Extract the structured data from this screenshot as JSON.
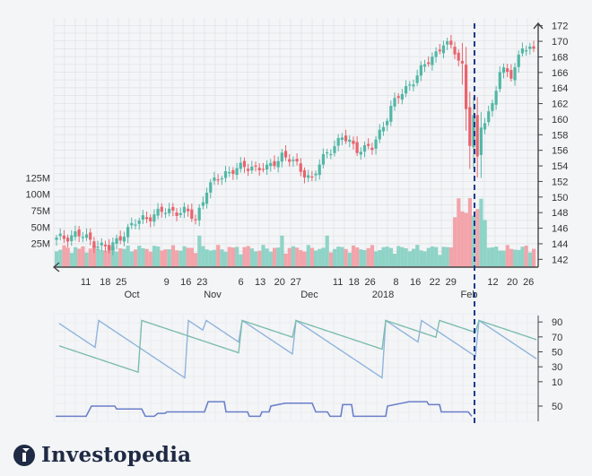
{
  "chart_data": [
    {
      "type": "candlestick",
      "title": "",
      "x_month_labels": [
        "Oct",
        "Nov",
        "Dec",
        "2018",
        "Feb"
      ],
      "x_day_labels": [
        "11",
        "18",
        "25",
        "9",
        "16",
        "23",
        "6",
        "13",
        "20",
        "27",
        "11",
        "18",
        "26",
        "8",
        "16",
        "22",
        "29",
        "12",
        "20",
        "26"
      ],
      "y_price_ticks": [
        "142",
        "144",
        "146",
        "148",
        "150",
        "152",
        "154",
        "156",
        "158",
        "160",
        "162",
        "164",
        "166",
        "168",
        "170",
        "172"
      ],
      "volume_ticks": [
        "25M",
        "50M",
        "75M",
        "100M",
        "125M"
      ],
      "price_ylim": [
        141,
        173
      ],
      "price_waypoints": [
        [
          0,
          144.5
        ],
        [
          5,
          145.3
        ],
        [
          10,
          144.2
        ],
        [
          14,
          143.3
        ],
        [
          18,
          145.5
        ],
        [
          23,
          147.3
        ],
        [
          30,
          148.3
        ],
        [
          34,
          148.1
        ],
        [
          37,
          147.2
        ],
        [
          40,
          151.0
        ],
        [
          45,
          153.2
        ],
        [
          52,
          154.0
        ],
        [
          56,
          153.5
        ],
        [
          60,
          155.5
        ],
        [
          64,
          154.0
        ],
        [
          68,
          152.3
        ],
        [
          72,
          155.8
        ],
        [
          76,
          157.6
        ],
        [
          80,
          156.3
        ],
        [
          84,
          156.2
        ],
        [
          89,
          161.5
        ],
        [
          93,
          164.0
        ],
        [
          98,
          166.8
        ],
        [
          103,
          169.8
        ],
        [
          106,
          168.6
        ],
        [
          108,
          167.0
        ],
        [
          109,
          161.5
        ],
        [
          110,
          157.0
        ],
        [
          111,
          160.2
        ],
        [
          112,
          154.5
        ],
        [
          113,
          159.0
        ],
        [
          116,
          162.0
        ],
        [
          118,
          166.0
        ],
        [
          121,
          165.8
        ],
        [
          124,
          169.2
        ],
        [
          127,
          168.6
        ]
      ],
      "volume_series_scale_millions": [
        0,
        150
      ],
      "event_marker": {
        "label": "Feb",
        "style": "dashed"
      },
      "colors": {
        "up": "#52b7a6",
        "down": "#e8646d",
        "up_volume": "#8fd3c7",
        "down_volume": "#f2a4aa",
        "marker": "#1f3b8c"
      }
    },
    {
      "type": "line",
      "title": "",
      "y_ticks": [
        "90",
        "70",
        "50",
        "30",
        "10"
      ],
      "series": [
        {
          "name": "",
          "color": "#8fb4dd",
          "style": "sawtooth",
          "start": 88,
          "end": 15
        },
        {
          "name": "",
          "color": "#7dbeae",
          "style": "sawtooth",
          "start": 58,
          "end": 52
        }
      ],
      "ylim": [
        0,
        100
      ]
    },
    {
      "type": "line",
      "title": "",
      "y_ticks": [
        "50"
      ],
      "series": [
        {
          "name": "",
          "color": "#6a7fc9",
          "style": "step",
          "start": 48,
          "end": 51
        }
      ],
      "ylim": [
        40,
        60
      ]
    }
  ],
  "branding": {
    "name": "Investopedia"
  }
}
